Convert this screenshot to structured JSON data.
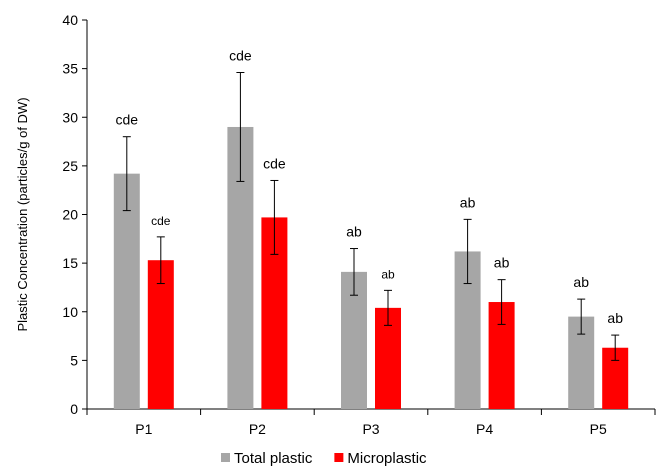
{
  "chart_data": {
    "type": "bar",
    "ylabel": "Plastic Concentration (particles/g of DW)",
    "xlabel": "",
    "ylim": [
      0,
      40
    ],
    "yticks": [
      "0",
      "5",
      "10",
      "15",
      "20",
      "25",
      "30",
      "35",
      "40"
    ],
    "grid": false,
    "legend_position": "bottom-center",
    "categories": [
      "P1",
      "P2",
      "P3",
      "P4",
      "P5"
    ],
    "series": [
      {
        "name": "Total plastic",
        "color": "#a6a6a6",
        "values": [
          24.2,
          29.0,
          14.1,
          16.2,
          9.5
        ],
        "error": [
          3.8,
          5.6,
          2.4,
          3.3,
          1.8
        ],
        "labels": [
          "cde",
          "cde",
          "ab",
          "ab",
          "ab"
        ]
      },
      {
        "name": "Microplastic",
        "color": "#ff0000",
        "values": [
          15.3,
          19.7,
          10.4,
          11.0,
          6.3
        ],
        "error": [
          2.4,
          3.8,
          1.8,
          2.3,
          1.3
        ],
        "labels": [
          "cde",
          "cde",
          "ab",
          "ab",
          "ab"
        ]
      }
    ]
  }
}
